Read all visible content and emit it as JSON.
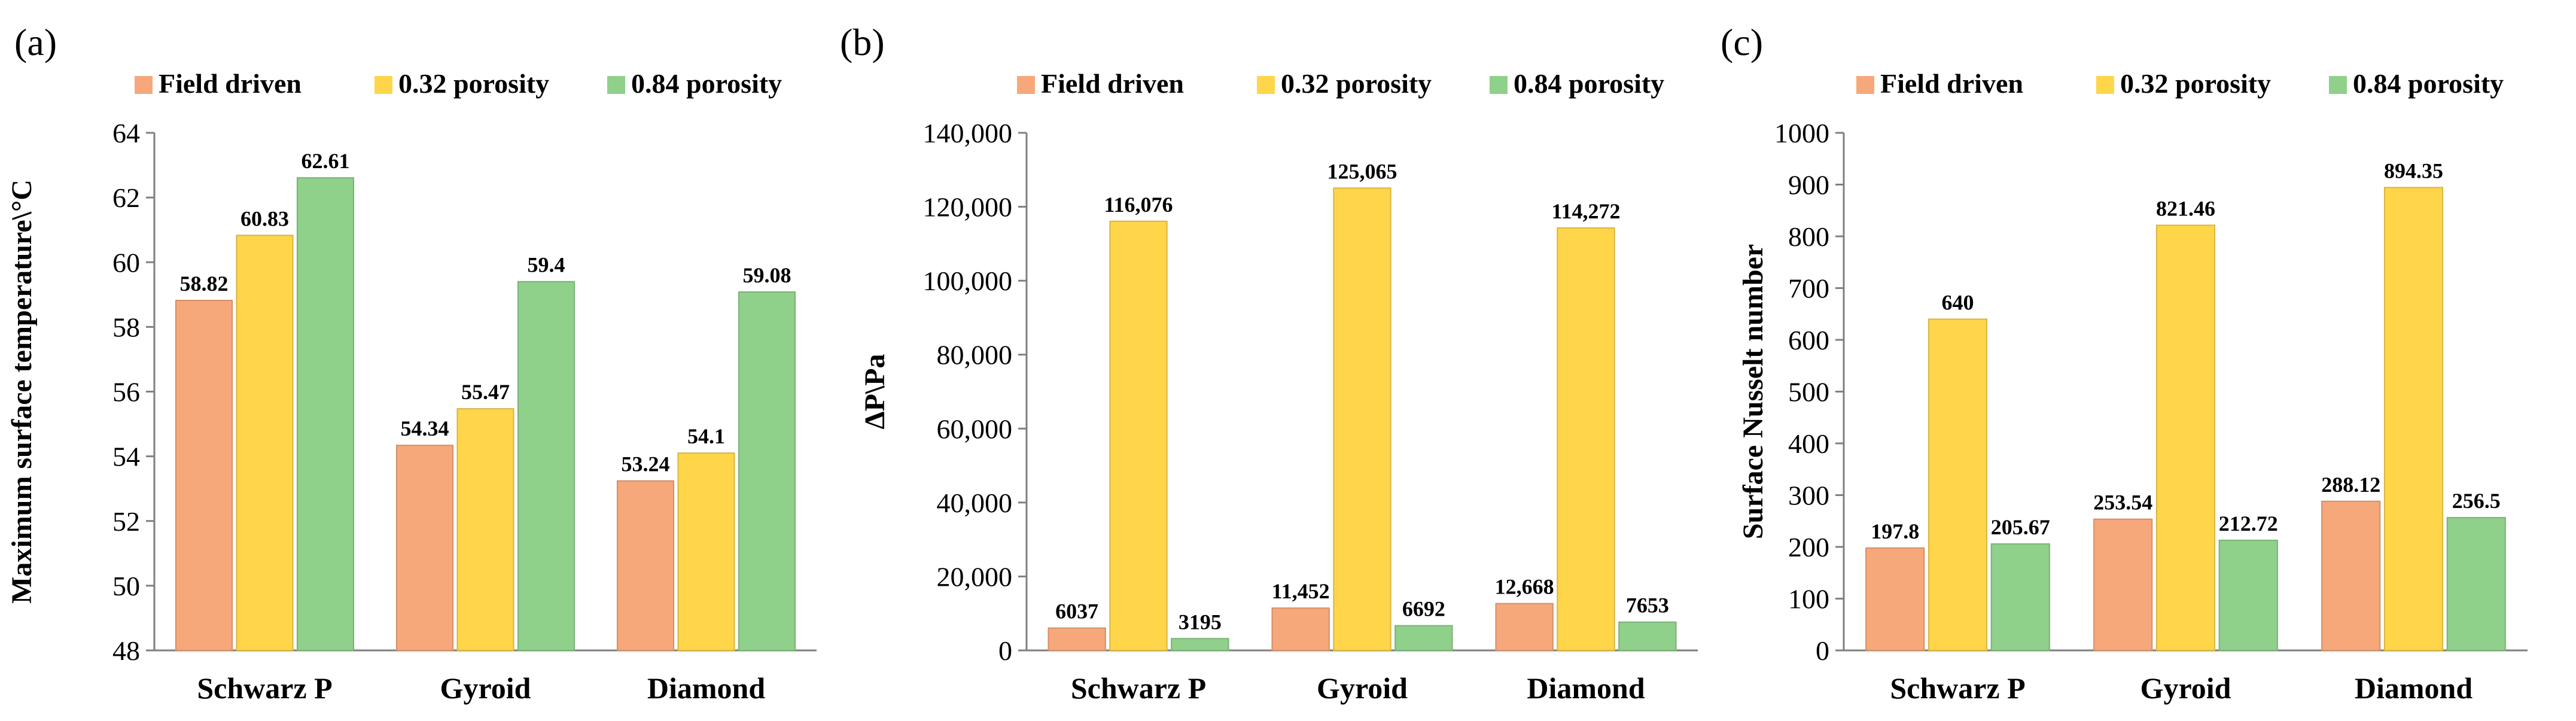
{
  "series_colors": {
    "Field driven": "#F7A87A",
    "0.32 porosity": "#FFD54A",
    "0.84 porosity": "#8FD08B"
  },
  "chart_data": [
    {
      "type": "bar",
      "panel_label": "(a)",
      "categories": [
        "Schwarz P",
        "Gyroid",
        "Diamond"
      ],
      "series": [
        {
          "name": "Field driven",
          "values": [
            58.82,
            54.34,
            53.24
          ],
          "labels": [
            "58.82",
            "54.34",
            "53.24"
          ]
        },
        {
          "name": "0.32 porosity",
          "values": [
            60.83,
            55.47,
            54.1
          ],
          "labels": [
            "60.83",
            "55.47",
            "54.1"
          ]
        },
        {
          "name": "0.84 porosity",
          "values": [
            62.61,
            59.4,
            59.08
          ],
          "labels": [
            "62.61",
            "59.4",
            "59.08"
          ]
        }
      ],
      "ylabel": "Maximum surface temperature\\°C",
      "xlabel": "",
      "ylim": [
        48,
        64
      ],
      "yticks": [
        48,
        50,
        52,
        54,
        56,
        58,
        60,
        62,
        64
      ],
      "ytick_labels": [
        "48",
        "50",
        "52",
        "54",
        "56",
        "58",
        "60",
        "62",
        "64"
      ],
      "legend": "top"
    },
    {
      "type": "bar",
      "panel_label": "(b)",
      "categories": [
        "Schwarz P",
        "Gyroid",
        "Diamond"
      ],
      "series": [
        {
          "name": "Field driven",
          "values": [
            6037,
            11452,
            12668
          ],
          "labels": [
            "6037",
            "11,452",
            "12,668"
          ]
        },
        {
          "name": "0.32 porosity",
          "values": [
            116076,
            125065,
            114272
          ],
          "labels": [
            "116,076",
            "125,065",
            "114,272"
          ]
        },
        {
          "name": "0.84 porosity",
          "values": [
            3195,
            6692,
            7653
          ],
          "labels": [
            "3195",
            "6692",
            "7653"
          ]
        }
      ],
      "ylabel": "ΔP\\Pa",
      "xlabel": "",
      "ylim": [
        0,
        140000
      ],
      "yticks": [
        0,
        20000,
        40000,
        60000,
        80000,
        100000,
        120000,
        140000
      ],
      "ytick_labels": [
        "0",
        "20,000",
        "40,000",
        "60,000",
        "80,000",
        "100,000",
        "120,000",
        "140,000"
      ],
      "legend": "top"
    },
    {
      "type": "bar",
      "panel_label": "(c)",
      "categories": [
        "Schwarz P",
        "Gyroid",
        "Diamond"
      ],
      "series": [
        {
          "name": "Field driven",
          "values": [
            197.8,
            253.54,
            288.12
          ],
          "labels": [
            "197.8",
            "253.54",
            "288.12"
          ]
        },
        {
          "name": "0.32 porosity",
          "values": [
            640,
            821.46,
            894.35
          ],
          "labels": [
            "640",
            "821.46",
            "894.35"
          ]
        },
        {
          "name": "0.84 porosity",
          "values": [
            205.67,
            212.72,
            256.5
          ],
          "labels": [
            "205.67",
            "212.72",
            "256.5"
          ]
        }
      ],
      "ylabel": "Surface Nusselt number",
      "xlabel": "",
      "ylim": [
        0,
        1000
      ],
      "yticks": [
        0,
        100,
        200,
        300,
        400,
        500,
        600,
        700,
        800,
        900,
        1000
      ],
      "ytick_labels": [
        "0",
        "100",
        "200",
        "300",
        "400",
        "500",
        "600",
        "700",
        "800",
        "900",
        "1000"
      ],
      "legend": "top"
    }
  ]
}
